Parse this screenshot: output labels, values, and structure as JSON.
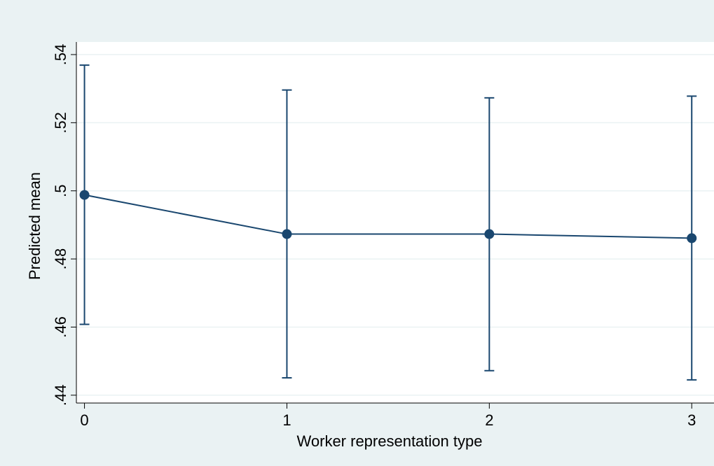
{
  "chart_data": {
    "type": "scatter",
    "title": "",
    "xlabel": "Worker representation type",
    "ylabel": "Predicted mean",
    "x": [
      0,
      1,
      2,
      3
    ],
    "x_ticks": [
      "0",
      "1",
      "2",
      "3"
    ],
    "y_ticks": [
      ".44",
      ".46",
      ".48",
      ".5",
      ".52",
      ".54"
    ],
    "y_tick_values": [
      0.44,
      0.46,
      0.48,
      0.5,
      0.52,
      0.54
    ],
    "xlim": [
      -0.04,
      3.11
    ],
    "ylim": [
      0.4377,
      0.5437
    ],
    "grid": true,
    "connected": true,
    "series": [
      {
        "values": [
          0.4988,
          0.4873,
          0.4873,
          0.4861
        ],
        "ci_lower": [
          0.4608,
          0.4451,
          0.4472,
          0.4445
        ],
        "ci_upper": [
          0.5369,
          0.5296,
          0.5273,
          0.5278
        ]
      }
    ],
    "colors": {
      "series": "#1a476f",
      "frame_background": "#eaf2f3",
      "plot_background": "#ffffff",
      "grid": "#eaf2f3"
    }
  }
}
